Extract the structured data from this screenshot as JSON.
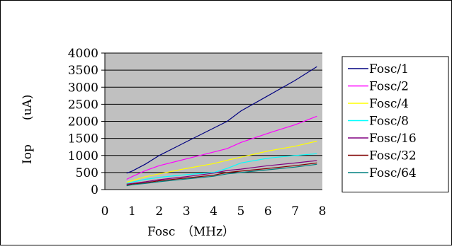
{
  "chart_data": {
    "type": "line",
    "title": "",
    "xlabel": "Fosc　（MHz）",
    "ylabel": "Iop　　(uA)",
    "xlim": [
      0,
      8
    ],
    "ylim": [
      0,
      4000
    ],
    "x_ticks": [
      0,
      1,
      2,
      3,
      4,
      5,
      6,
      7,
      8
    ],
    "y_ticks": [
      0,
      500,
      1000,
      1500,
      2000,
      2500,
      3000,
      3500,
      4000
    ],
    "grid": true,
    "legend_position": "right",
    "plot_background": "#c0c0c0",
    "series": [
      {
        "name": "Fosc/1",
        "color": "#000080",
        "x": [
          0.8,
          1,
          1.5,
          2,
          3,
          4,
          4.5,
          5,
          6,
          7,
          7.8
        ],
        "y": [
          480,
          540,
          750,
          1000,
          1400,
          1800,
          2000,
          2300,
          2750,
          3200,
          3600
        ]
      },
      {
        "name": "Fosc/2",
        "color": "#ff00ff",
        "x": [
          0.8,
          1,
          1.5,
          2,
          3,
          4,
          4.5,
          5,
          6,
          7,
          7.8
        ],
        "y": [
          300,
          380,
          560,
          700,
          900,
          1100,
          1200,
          1380,
          1650,
          1900,
          2150
        ]
      },
      {
        "name": "Fosc/4",
        "color": "#ffff00",
        "x": [
          0.8,
          1,
          1.5,
          2,
          3,
          4,
          4.5,
          5,
          6,
          7,
          7.8
        ],
        "y": [
          220,
          260,
          380,
          460,
          620,
          760,
          860,
          950,
          1130,
          1270,
          1420
        ]
      },
      {
        "name": "Fosc/8",
        "color": "#00ffff",
        "x": [
          0.8,
          1,
          1.5,
          2,
          3,
          4,
          4.5,
          5,
          6,
          7,
          7.8
        ],
        "y": [
          180,
          220,
          300,
          360,
          440,
          500,
          620,
          780,
          920,
          1000,
          1050
        ]
      },
      {
        "name": "Fosc/16",
        "color": "#800080",
        "x": [
          0.8,
          1,
          1.5,
          2,
          3,
          4,
          4.5,
          5,
          6,
          7,
          7.8
        ],
        "y": [
          160,
          180,
          230,
          290,
          380,
          480,
          560,
          600,
          700,
          780,
          850
        ]
      },
      {
        "name": "Fosc/32",
        "color": "#800000",
        "x": [
          0.8,
          1,
          1.5,
          2,
          3,
          4,
          4.5,
          5,
          6,
          7,
          7.8
        ],
        "y": [
          130,
          160,
          200,
          260,
          340,
          420,
          500,
          540,
          620,
          700,
          780
        ]
      },
      {
        "name": "Fosc/64",
        "color": "#008080",
        "x": [
          0.8,
          1,
          1.5,
          2,
          3,
          4,
          4.5,
          5,
          6,
          7,
          7.8
        ],
        "y": [
          110,
          140,
          180,
          230,
          310,
          390,
          460,
          500,
          580,
          660,
          740
        ]
      }
    ]
  }
}
